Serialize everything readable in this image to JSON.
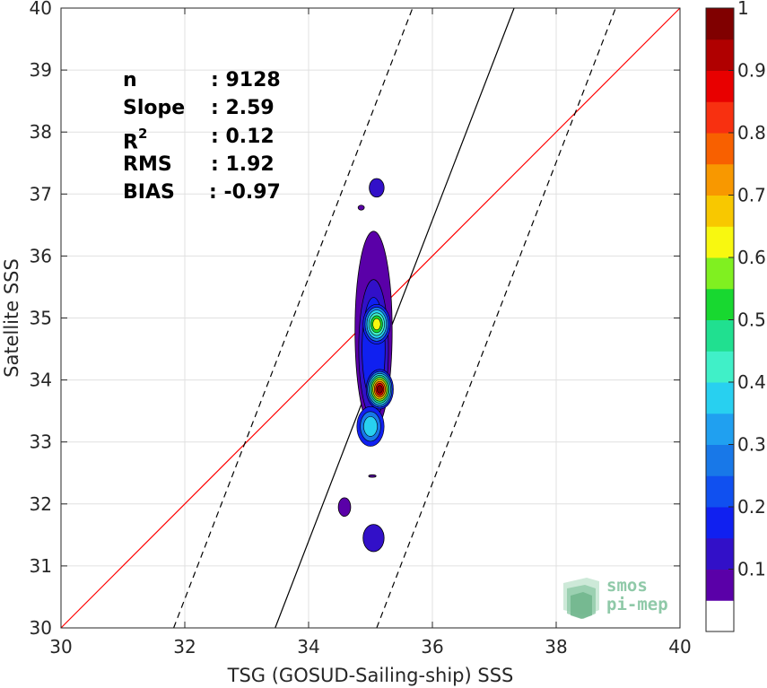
{
  "chart_data": {
    "type": "contour",
    "xlabel": "TSG (GOSUD-Sailing-ship) SSS",
    "ylabel": "Satellite SSS",
    "xlim": [
      30,
      40
    ],
    "ylim": [
      30,
      40
    ],
    "xticks": [
      30,
      32,
      34,
      36,
      38,
      40
    ],
    "yticks": [
      30,
      31,
      32,
      33,
      34,
      35,
      36,
      37,
      38,
      39,
      40
    ],
    "grid": true,
    "stats": [
      {
        "label": "n",
        "value": ": 9128"
      },
      {
        "label": "Slope",
        "value": ": 2.59"
      },
      {
        "label": "R",
        "sup": "2",
        "value": ": 0.12"
      },
      {
        "label": "RMS",
        "value": ": 1.92"
      },
      {
        "label": "BIAS",
        "value": ": -0.97"
      }
    ],
    "lines": [
      {
        "name": "one-to-one",
        "color": "#ff0000",
        "style": "solid",
        "x": [
          30,
          40
        ],
        "y": [
          30,
          40
        ]
      },
      {
        "name": "regression",
        "color": "#000000",
        "style": "solid",
        "x": [
          33.46,
          37.32
        ],
        "y": [
          30,
          40
        ]
      },
      {
        "name": "regression-upper",
        "color": "#000000",
        "style": "dashed",
        "x": [
          31.82,
          35.68
        ],
        "y": [
          30,
          40
        ]
      },
      {
        "name": "regression-lower",
        "color": "#000000",
        "style": "dashed",
        "x": [
          35.1,
          38.96
        ],
        "y": [
          30,
          40
        ]
      }
    ],
    "density_blobs": [
      {
        "cx": 35.1,
        "cy": 37.1,
        "rx": 0.12,
        "ry": 0.15,
        "level": 0.12
      },
      {
        "cx": 34.85,
        "cy": 36.78,
        "rx": 0.05,
        "ry": 0.04,
        "level": 0.06
      },
      {
        "cx": 35.05,
        "cy": 34.8,
        "rx": 0.3,
        "ry": 1.6,
        "level": 0.1
      },
      {
        "cx": 34.58,
        "cy": 31.95,
        "rx": 0.1,
        "ry": 0.15,
        "level": 0.1
      },
      {
        "cx": 35.05,
        "cy": 31.45,
        "rx": 0.17,
        "ry": 0.22,
        "level": 0.15
      },
      {
        "cx": 35.03,
        "cy": 32.45,
        "rx": 0.06,
        "ry": 0.02,
        "level": 0.06
      }
    ],
    "peaks": [
      {
        "x": 35.1,
        "y": 34.9,
        "value": 0.65
      },
      {
        "x": 35.15,
        "y": 33.85,
        "value": 1.0
      },
      {
        "x": 35.0,
        "y": 33.25,
        "value": 0.4
      }
    ],
    "colorbar": {
      "min": 0,
      "max": 1,
      "ticks": [
        0.1,
        0.2,
        0.3,
        0.4,
        0.5,
        0.6,
        0.7,
        0.8,
        0.9,
        1
      ],
      "tick_labels": [
        "0.1",
        "0.2",
        "0.3",
        "0.4",
        "0.5",
        "0.6",
        "0.7",
        "0.8",
        "0.9",
        "1"
      ],
      "colors": [
        "#ffffff",
        "#5a00a8",
        "#3210c8",
        "#1020f0",
        "#1050f0",
        "#1878e8",
        "#20a0f0",
        "#28d0f0",
        "#40f0c8",
        "#20e090",
        "#18d830",
        "#80f020",
        "#f8f810",
        "#f8c800",
        "#f89800",
        "#f86000",
        "#f83010",
        "#e80000",
        "#b00000",
        "#800000"
      ]
    }
  },
  "logo": {
    "line1": "smos",
    "line2": "pi-mep",
    "color": "#8fc9a8"
  }
}
